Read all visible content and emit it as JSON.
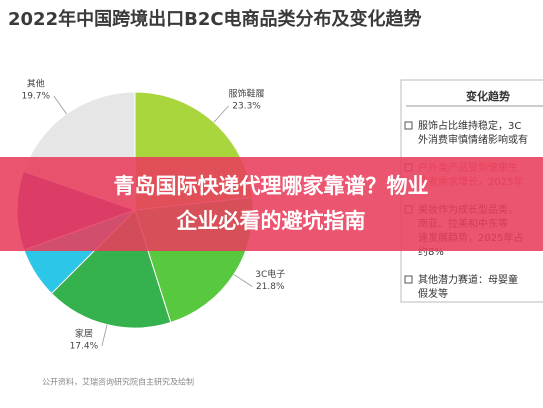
{
  "chart_data": {
    "type": "pie",
    "title": "2022年中国跨境出口B2C电商品类分布及变化趋势",
    "categories": [
      "服饰鞋履",
      "3C电子",
      "家居",
      null,
      null,
      "其他"
    ],
    "values": [
      23.3,
      21.8,
      17.4,
      7.0,
      10.8,
      19.7
    ],
    "value_labels": [
      "23.3%",
      "21.8%",
      "17.4%",
      null,
      null,
      "19.7%"
    ],
    "colors": [
      "#a9d63c",
      "#58c83e",
      "#35b24e",
      "#2cc6e6",
      "#7a3fae",
      "#e6e6e6"
    ],
    "source": "公开资料，艾瑞咨询研究院自主研究及绘制"
  },
  "side_panel": {
    "title": "变化趋势",
    "items": [
      [
        "服饰占比维持稳定，3C",
        "外消费审慎情绪影响或有"
      ],
      [
        "户外类产品受到健康生",
        "费者需求增长，2025年"
      ],
      [
        "美妆作为成长型品类，",
        "南亚、拉美和中东等",
        "速发展趋势，2025年占",
        "约8%"
      ],
      [
        "其他潜力赛道：母婴童",
        "假发等"
      ]
    ]
  },
  "banner": {
    "lines": [
      "青岛国际快递代理哪家靠谱？物业",
      "企业必看的避坑指南"
    ]
  }
}
